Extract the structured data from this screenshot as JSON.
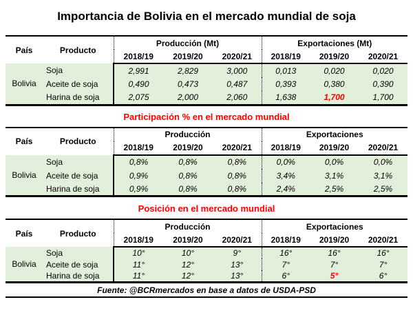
{
  "page": {
    "title": "Importancia de Bolivia en el mercado mundial de soja",
    "source_note": "Fuente: @BCRmercados en base a datos de USDA-PSD"
  },
  "colors": {
    "row_green": "#e2efda",
    "accent_red": "#ff0000"
  },
  "tables": [
    {
      "country_header": "País",
      "product_header": "Producto",
      "group1_header": "Producción (Mt)",
      "group2_header": "Exportaciones (Mt)",
      "years": [
        "2018/19",
        "2019/20",
        "2020/21"
      ],
      "country": "Bolivia",
      "rows": [
        {
          "product": "Soja",
          "prod": [
            "2,991",
            "2,829",
            "3,000"
          ],
          "exp": [
            "0,013",
            "0,020",
            "0,020"
          ]
        },
        {
          "product": "Aceite de soja",
          "prod": [
            "0,490",
            "0,473",
            "0,487"
          ],
          "exp": [
            "0,393",
            "0,380",
            "0,390"
          ]
        },
        {
          "product": "Harina de soja",
          "prod": [
            "2,075",
            "2,000",
            "2,060"
          ],
          "exp": [
            "1,638",
            "1,700",
            "1,700"
          ]
        }
      ]
    },
    {
      "section_title": "Participación % en el mercado mundial",
      "country_header": "País",
      "product_header": "Producto",
      "group1_header": "Producción",
      "group2_header": "Exportaciones",
      "years": [
        "2018/19",
        "2019/20",
        "2020/21"
      ],
      "country": "Bolivia",
      "rows": [
        {
          "product": "Soja",
          "prod": [
            "0,8%",
            "0,8%",
            "0,8%"
          ],
          "exp": [
            "0,0%",
            "0,0%",
            "0,0%"
          ]
        },
        {
          "product": "Aceite de soja",
          "prod": [
            "0,9%",
            "0,8%",
            "0,8%"
          ],
          "exp": [
            "3,4%",
            "3,1%",
            "3,1%"
          ]
        },
        {
          "product": "Harina de soja",
          "prod": [
            "0,9%",
            "0,8%",
            "0,8%"
          ],
          "exp": [
            "2,4%",
            "2,5%",
            "2,5%"
          ]
        }
      ]
    },
    {
      "section_title": "Posición en el mercado mundial",
      "country_header": "País",
      "product_header": "Producto",
      "group1_header": "Producción",
      "group2_header": "Exportaciones",
      "years": [
        "2018/19",
        "2019/20",
        "2020/21"
      ],
      "country": "Bolivia",
      "rows": [
        {
          "product": "Soja",
          "prod": [
            "10°",
            "10°",
            "9°"
          ],
          "exp": [
            "16°",
            "16°",
            "16°"
          ]
        },
        {
          "product": "Aceite de soja",
          "prod": [
            "11°",
            "12°",
            "13°"
          ],
          "exp": [
            "7°",
            "7°",
            "7°"
          ]
        },
        {
          "product": "Harina de soja",
          "prod": [
            "11°",
            "12°",
            "13°"
          ],
          "exp": [
            "6°",
            "5°",
            "6°"
          ]
        }
      ]
    }
  ]
}
